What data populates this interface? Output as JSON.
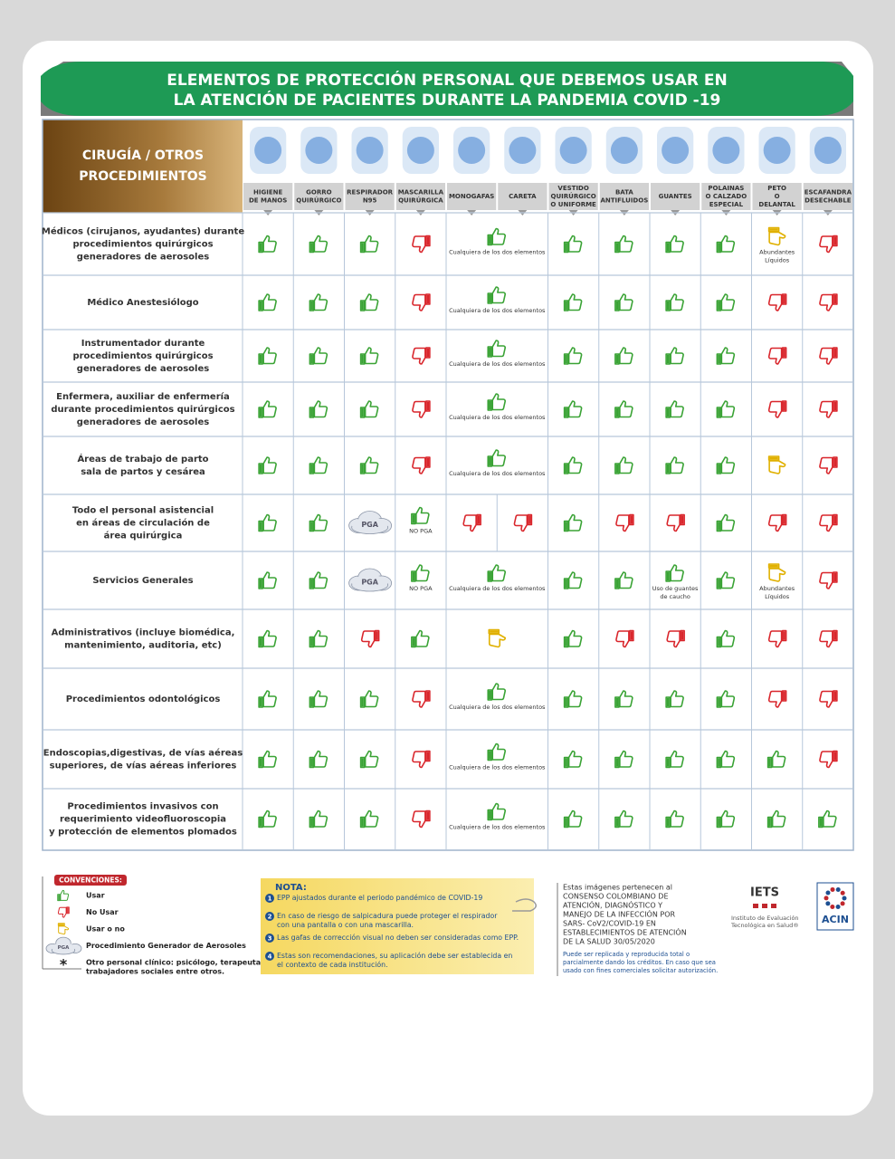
{
  "header": {
    "title": [
      "ELEMENTOS DE PROTECCIÓN PERSONAL QUE DEBEMOS USAR EN",
      "LA ATENCIÓN DE PACIENTES DURANTE LA PANDEMIA COVID -19"
    ]
  },
  "table": {
    "section": [
      "CIRUGÍA / OTROS",
      "PROCEDIMIENTOS"
    ],
    "columns": [
      [
        "HIGIENE",
        "DE MANOS"
      ],
      [
        "GORRO",
        "QUIRÚRGICO"
      ],
      [
        "RESPIRADOR",
        "N95"
      ],
      [
        "MASCARILLA",
        "QUIRÚRGICA"
      ],
      [
        "MONOGAFAS"
      ],
      [
        "CARETA"
      ],
      [
        "VESTIDO",
        "QUIRÚRGICO",
        "O UNIFORME"
      ],
      [
        "BATA",
        "ANTIFLUIDOS"
      ],
      [
        "GUANTES"
      ],
      [
        "POLAINAS",
        "O CALZADO",
        "ESPECIAL"
      ],
      [
        "PETO",
        "O",
        "DELANTAL"
      ],
      [
        "ESCAFANDRA",
        "DESECHABLE"
      ]
    ],
    "rows": [
      {
        "label": [
          "Médicos (cirujanos, ayudantes) durante",
          "procedimientos quirúrgicos",
          "generadores de aerosoles"
        ],
        "cells": [
          {
            "icon": "up"
          },
          {
            "icon": "up"
          },
          {
            "icon": "up"
          },
          {
            "icon": "down"
          },
          {
            "icon": "up",
            "span": 2,
            "note": [
              "Cualquiera de los dos elementos"
            ]
          },
          {
            "icon": "up"
          },
          {
            "icon": "up"
          },
          {
            "icon": "up"
          },
          {
            "icon": "up"
          },
          {
            "icon": "maybe",
            "note": [
              "Abundantes",
              "Líquidos"
            ]
          },
          {
            "icon": "down"
          }
        ]
      },
      {
        "label": [
          "Médico Anestesiólogo"
        ],
        "cells": [
          {
            "icon": "up"
          },
          {
            "icon": "up"
          },
          {
            "icon": "up"
          },
          {
            "icon": "down"
          },
          {
            "icon": "up",
            "span": 2,
            "note": [
              "Cualquiera de los dos elementos"
            ]
          },
          {
            "icon": "up"
          },
          {
            "icon": "up"
          },
          {
            "icon": "up"
          },
          {
            "icon": "up"
          },
          {
            "icon": "down"
          },
          {
            "icon": "down"
          }
        ]
      },
      {
        "label": [
          "Instrumentador durante",
          "procedimientos quirúrgicos",
          "generadores de aerosoles"
        ],
        "cells": [
          {
            "icon": "up"
          },
          {
            "icon": "up"
          },
          {
            "icon": "up"
          },
          {
            "icon": "down"
          },
          {
            "icon": "up",
            "span": 2,
            "note": [
              "Cualquiera de los dos elementos"
            ]
          },
          {
            "icon": "up"
          },
          {
            "icon": "up"
          },
          {
            "icon": "up"
          },
          {
            "icon": "up"
          },
          {
            "icon": "down"
          },
          {
            "icon": "down"
          }
        ]
      },
      {
        "label": [
          "Enfermera, auxiliar de enfermería",
          "durante procedimientos quirúrgicos",
          "generadores de aerosoles"
        ],
        "cells": [
          {
            "icon": "up"
          },
          {
            "icon": "up"
          },
          {
            "icon": "up"
          },
          {
            "icon": "down"
          },
          {
            "icon": "up",
            "span": 2,
            "note": [
              "Cualquiera de los dos elementos"
            ]
          },
          {
            "icon": "up"
          },
          {
            "icon": "up"
          },
          {
            "icon": "up"
          },
          {
            "icon": "up"
          },
          {
            "icon": "down"
          },
          {
            "icon": "down"
          }
        ]
      },
      {
        "label": [
          "Áreas de trabajo de parto",
          "sala de partos y cesárea"
        ],
        "cells": [
          {
            "icon": "up"
          },
          {
            "icon": "up"
          },
          {
            "icon": "up"
          },
          {
            "icon": "down"
          },
          {
            "icon": "up",
            "span": 2,
            "note": [
              "Cualquiera de los dos elementos"
            ]
          },
          {
            "icon": "up"
          },
          {
            "icon": "up"
          },
          {
            "icon": "up"
          },
          {
            "icon": "up"
          },
          {
            "icon": "maybe"
          },
          {
            "icon": "down"
          }
        ]
      },
      {
        "label": [
          "Todo el personal asistencial",
          "en áreas de circulación de",
          "área quirúrgica"
        ],
        "cells": [
          {
            "icon": "up"
          },
          {
            "icon": "up"
          },
          {
            "icon": "cloud",
            "text": "PGA"
          },
          {
            "icon": "up",
            "note": [
              "NO PGA"
            ]
          },
          {
            "icon": "down"
          },
          {
            "icon": "down"
          },
          {
            "icon": "up"
          },
          {
            "icon": "down"
          },
          {
            "icon": "down"
          },
          {
            "icon": "up"
          },
          {
            "icon": "down"
          },
          {
            "icon": "down"
          }
        ]
      },
      {
        "label": [
          "Servicios Generales"
        ],
        "cells": [
          {
            "icon": "up"
          },
          {
            "icon": "up"
          },
          {
            "icon": "cloud",
            "text": "PGA"
          },
          {
            "icon": "up",
            "note": [
              "NO PGA"
            ]
          },
          {
            "icon": "up",
            "span": 2,
            "note": [
              "Cualquiera de los dos elementos"
            ]
          },
          {
            "icon": "up"
          },
          {
            "icon": "up"
          },
          {
            "icon": "up",
            "note": [
              "Uso de guantes",
              "de caucho"
            ]
          },
          {
            "icon": "up"
          },
          {
            "icon": "maybe",
            "note": [
              "Abundantes",
              "Líquidos"
            ]
          },
          {
            "icon": "down"
          }
        ]
      },
      {
        "label": [
          "Administrativos (incluye biomédica,",
          "mantenimiento, auditoria, etc)"
        ],
        "cells": [
          {
            "icon": "up"
          },
          {
            "icon": "up"
          },
          {
            "icon": "down"
          },
          {
            "icon": "up"
          },
          {
            "icon": "maybe",
            "span": 2
          },
          {
            "icon": "up"
          },
          {
            "icon": "down"
          },
          {
            "icon": "down"
          },
          {
            "icon": "up"
          },
          {
            "icon": "down"
          },
          {
            "icon": "down"
          }
        ]
      },
      {
        "label": [
          "Procedimientos odontológicos"
        ],
        "cells": [
          {
            "icon": "up"
          },
          {
            "icon": "up"
          },
          {
            "icon": "up"
          },
          {
            "icon": "down"
          },
          {
            "icon": "up",
            "span": 2,
            "note": [
              "Cualquiera de los dos elementos"
            ]
          },
          {
            "icon": "up"
          },
          {
            "icon": "up"
          },
          {
            "icon": "up"
          },
          {
            "icon": "up"
          },
          {
            "icon": "down"
          },
          {
            "icon": "down"
          }
        ]
      },
      {
        "label": [
          "Endoscopias,digestivas, de vías aéreas",
          "superiores, de vías aéreas inferiores"
        ],
        "cells": [
          {
            "icon": "up"
          },
          {
            "icon": "up"
          },
          {
            "icon": "up"
          },
          {
            "icon": "down"
          },
          {
            "icon": "up",
            "span": 2,
            "note": [
              "Cualquiera de los dos elementos"
            ]
          },
          {
            "icon": "up"
          },
          {
            "icon": "up"
          },
          {
            "icon": "up"
          },
          {
            "icon": "up"
          },
          {
            "icon": "up"
          },
          {
            "icon": "down"
          }
        ]
      },
      {
        "label": [
          "Procedimientos invasivos con",
          "requerimiento videofluoroscopia",
          "y protección de elementos plomados"
        ],
        "cells": [
          {
            "icon": "up"
          },
          {
            "icon": "up"
          },
          {
            "icon": "up"
          },
          {
            "icon": "down"
          },
          {
            "icon": "up",
            "span": 2,
            "note": [
              "Cualquiera de los dos elementos"
            ]
          },
          {
            "icon": "up"
          },
          {
            "icon": "up"
          },
          {
            "icon": "up"
          },
          {
            "icon": "up"
          },
          {
            "icon": "up"
          },
          {
            "icon": "up"
          }
        ]
      }
    ]
  },
  "legend": {
    "title": "CONVENCIONES:",
    "items": [
      {
        "icon": "up",
        "text": [
          "Usar"
        ]
      },
      {
        "icon": "down",
        "text": [
          "No Usar"
        ]
      },
      {
        "icon": "maybe",
        "text": [
          "Usar o no"
        ]
      },
      {
        "icon": "cloud",
        "cloud_text": "PGA",
        "text": [
          "Procedimiento Generador de Aerosoles"
        ]
      },
      {
        "mark": "*",
        "text": [
          "Otro personal clínico: psicólogo, terapeutas,",
          "trabajadores sociales entre otros."
        ]
      }
    ]
  },
  "note": {
    "title": "NOTA:",
    "items": [
      {
        "number": "1",
        "text": [
          "EPP ajustados durante el periodo pandémico de COVID-19"
        ]
      },
      {
        "number": "2",
        "text": [
          "En caso de riesgo de salpicadura puede proteger el respirador",
          "con una pantalla o con una mascarilla."
        ]
      },
      {
        "number": "3",
        "text": [
          "Las gafas de corrección visual no deben ser consideradas como EPP."
        ]
      },
      {
        "number": "4",
        "text": [
          "Estas son recomendaciones, su aplicación debe ser establecida en",
          "el contexto de cada institución."
        ]
      }
    ]
  },
  "credits": {
    "text": [
      "Estas imágenes pertenecen al",
      "CONSENSO COLOMBIANO DE",
      "ATENCIÓN, DIAGNÓSTICO Y",
      "MANEJO DE LA INFECCIÓN POR",
      "SARS- CoV2/COVID-19 EN",
      "ESTABLECIMIENTOS DE ATENCIÓN",
      "DE LA SALUD 30/05/2020"
    ],
    "license": [
      "Puede ser replicada y reproducida total o",
      "parcialmente dando los créditos. En caso que sea",
      "usado con fines comerciales solicitar autorización."
    ]
  },
  "logos": [
    {
      "name": "IETS",
      "caption": [
        "Instituto de Evaluación",
        "Tecnológica en Salud®"
      ]
    },
    {
      "name": "ACIN"
    }
  ]
}
